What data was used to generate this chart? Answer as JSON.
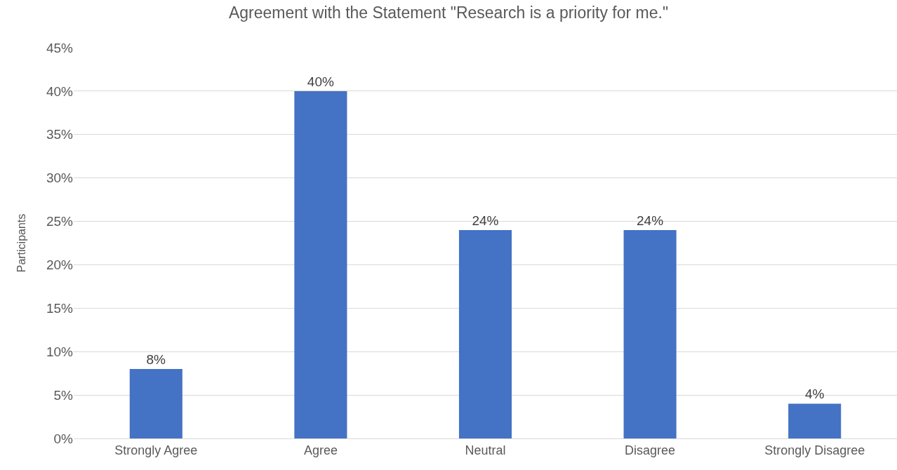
{
  "chart_data": {
    "type": "bar",
    "title": "Agreement with the Statement \"Research is a priority for me.\"",
    "ylabel": "Participants",
    "categories": [
      "Strongly Agree",
      "Agree",
      "Neutral",
      "Disagree",
      "Strongly Disagree"
    ],
    "values": [
      8,
      40,
      24,
      24,
      4
    ],
    "value_labels": [
      "8%",
      "40%",
      "24%",
      "24%",
      "4%"
    ],
    "color": "#4472c4",
    "ylim": [
      0,
      45
    ],
    "yticks": [
      {
        "value": 0,
        "label": "0%"
      },
      {
        "value": 5,
        "label": "5%"
      },
      {
        "value": 10,
        "label": "10%"
      },
      {
        "value": 15,
        "label": "15%"
      },
      {
        "value": 20,
        "label": "20%"
      },
      {
        "value": 25,
        "label": "25%"
      },
      {
        "value": 30,
        "label": "30%"
      },
      {
        "value": 35,
        "label": "35%"
      },
      {
        "value": 40,
        "label": "40%"
      },
      {
        "value": 45,
        "label": "45%"
      }
    ],
    "grid": "y"
  }
}
